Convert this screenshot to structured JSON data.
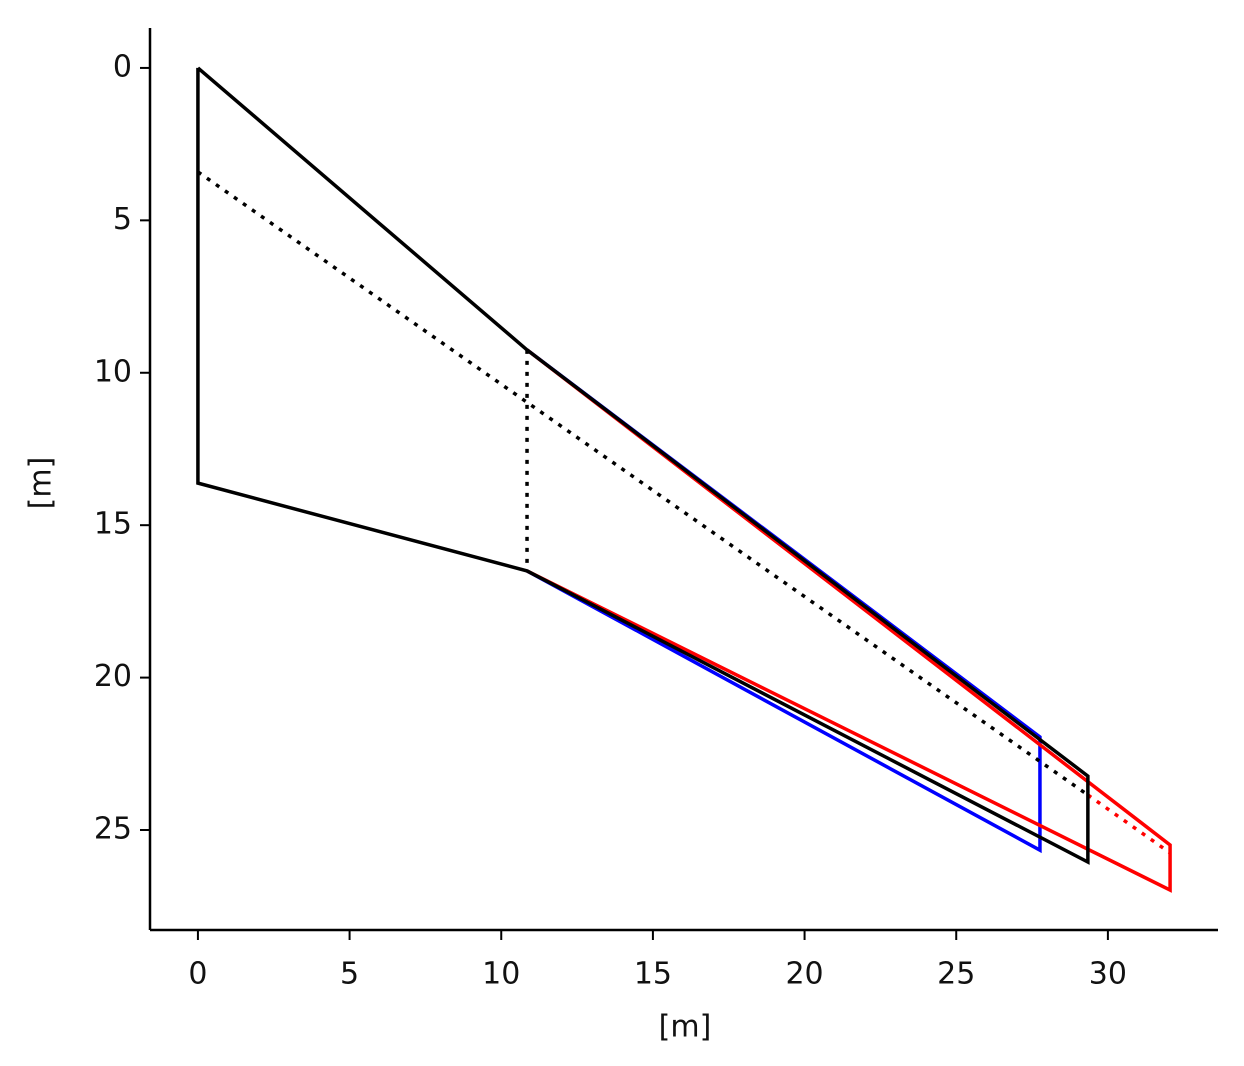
{
  "chart_data": {
    "type": "line",
    "x_label": "[m]",
    "y_label": "[m]",
    "xlim": [
      -1.58,
      33.63
    ],
    "ylim": [
      28.28,
      -1.31
    ],
    "xticks": [
      0,
      5,
      10,
      15,
      20,
      25,
      30
    ],
    "yticks": [
      0,
      5,
      10,
      15,
      20,
      25
    ],
    "series": [
      {
        "color": "#0000ff",
        "style": "solid",
        "x": [
          10.85,
          27.76,
          27.76,
          10.85
        ],
        "values": [
          9.25,
          21.95,
          25.66,
          16.5
        ]
      },
      {
        "color": "#ff0000",
        "style": "solid",
        "x": [
          10.85,
          32.05,
          32.05,
          10.85
        ],
        "values": [
          9.25,
          25.49,
          26.97,
          16.5
        ]
      },
      {
        "color": "#ff0000",
        "style": "dotted",
        "x": [
          29.34,
          32.05
        ],
        "values": [
          23.85,
          25.75
        ]
      },
      {
        "color": "#000000",
        "style": "solid",
        "x": [
          0,
          10.85,
          29.34,
          29.34,
          10.85,
          0,
          0
        ],
        "values": [
          0,
          9.25,
          23.23,
          26.05,
          16.5,
          13.62,
          0
        ]
      },
      {
        "color": "#000000",
        "style": "dotted",
        "x": [
          0,
          29.34
        ],
        "values": [
          3.41,
          23.85
        ]
      },
      {
        "color": "#000000",
        "style": "dotted",
        "x": [
          10.85,
          10.85
        ],
        "values": [
          9.25,
          16.5
        ]
      }
    ]
  }
}
